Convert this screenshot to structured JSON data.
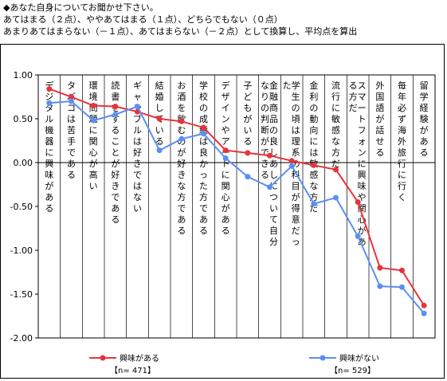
{
  "header": {
    "line1": "◆あなた自身についてお聞かせ下さい。",
    "line2": "あてはまる（２点）、ややあてはまる（１点）、どちらでもない（０点）",
    "line3": "あまりあてはまらない（－１点）、あてはまらない（－２点）として換算し、平均点を算出"
  },
  "chart_data": {
    "type": "line",
    "ylim": [
      -2.0,
      1.0
    ],
    "yticks": [
      "1.00",
      "0.50",
      "0.00",
      "-0.50",
      "-1.00",
      "-1.50",
      "-2.00"
    ],
    "grid": "vertical category lines",
    "legend_position": "bottom",
    "categories": [
      "デジタル機器に興味がある",
      "タバコは苦手である",
      "環境問題に関心が高い",
      "読書をすることが好きである",
      "ギャンブルは好きではない",
      "結婚している",
      "お酒を飲むのが好きな方である",
      "学校の成績は良かった方である",
      "デザインやアートに関心がある",
      "子どもがいる",
      "金融商品の良しあしについて自分なりの判断ができる",
      "学生の頃は理系の科目が得意だった",
      "金利の動向には敏感な方だ",
      "流行に敏感な方だ",
      "スマートフォンに興味や関心がある方だ",
      "外国語が話せる",
      "毎年必ず海外旅行に行く",
      "留学経験がある"
    ],
    "series": [
      {
        "name": "興味がある",
        "n": "【n= 471】",
        "color": "#e8333a",
        "values": [
          0.84,
          0.75,
          0.65,
          0.64,
          0.58,
          0.5,
          0.47,
          0.4,
          0.14,
          0.11,
          0.08,
          0.02,
          -0.03,
          -0.08,
          -0.45,
          -1.2,
          -1.23,
          -1.63
        ]
      },
      {
        "name": "興味がない",
        "n": "【n= 529】",
        "color": "#5b8ff0",
        "values": [
          0.68,
          0.7,
          0.48,
          0.55,
          0.64,
          0.14,
          0.27,
          0.33,
          0.05,
          -0.16,
          -0.28,
          -0.04,
          -0.47,
          -0.4,
          -0.84,
          -1.41,
          -1.42,
          -1.72
        ]
      }
    ]
  }
}
